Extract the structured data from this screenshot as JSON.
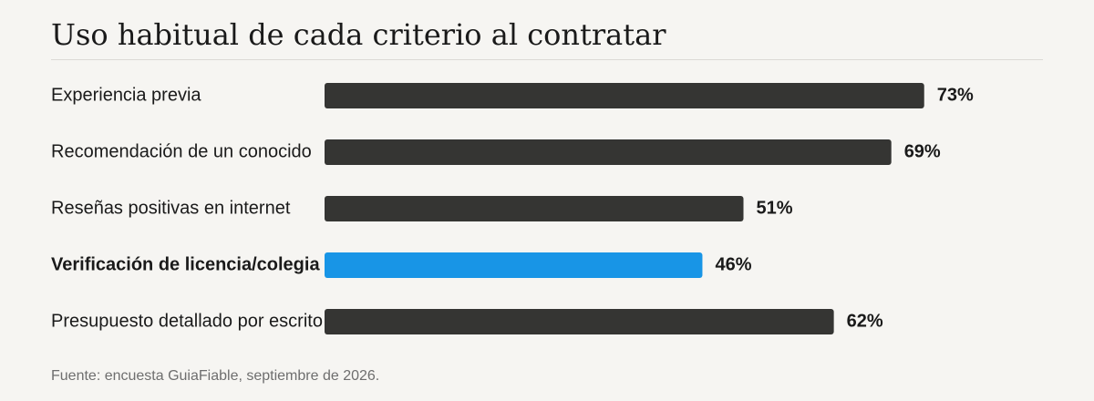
{
  "chart_data": {
    "type": "bar",
    "orientation": "horizontal",
    "title": "Uso habitual de cada criterio al contratar",
    "categories": [
      "Experiencia previa",
      "Recomendación de un conocido",
      "Reseñas positivas en internet",
      "Verificación de licencia/colegia",
      "Presupuesto detallado por escrito"
    ],
    "values": [
      73,
      69,
      51,
      46,
      62
    ],
    "value_labels": [
      "73%",
      "69%",
      "51%",
      "46%",
      "62%"
    ],
    "highlight_index": 3,
    "xlim": [
      0,
      100
    ],
    "grid": false,
    "xlabel": "",
    "ylabel": "",
    "colors": {
      "bar": "#353533",
      "highlight": "#1895e6"
    }
  },
  "source": "Fuente: encuesta GuiaFiable, septiembre de 2026."
}
